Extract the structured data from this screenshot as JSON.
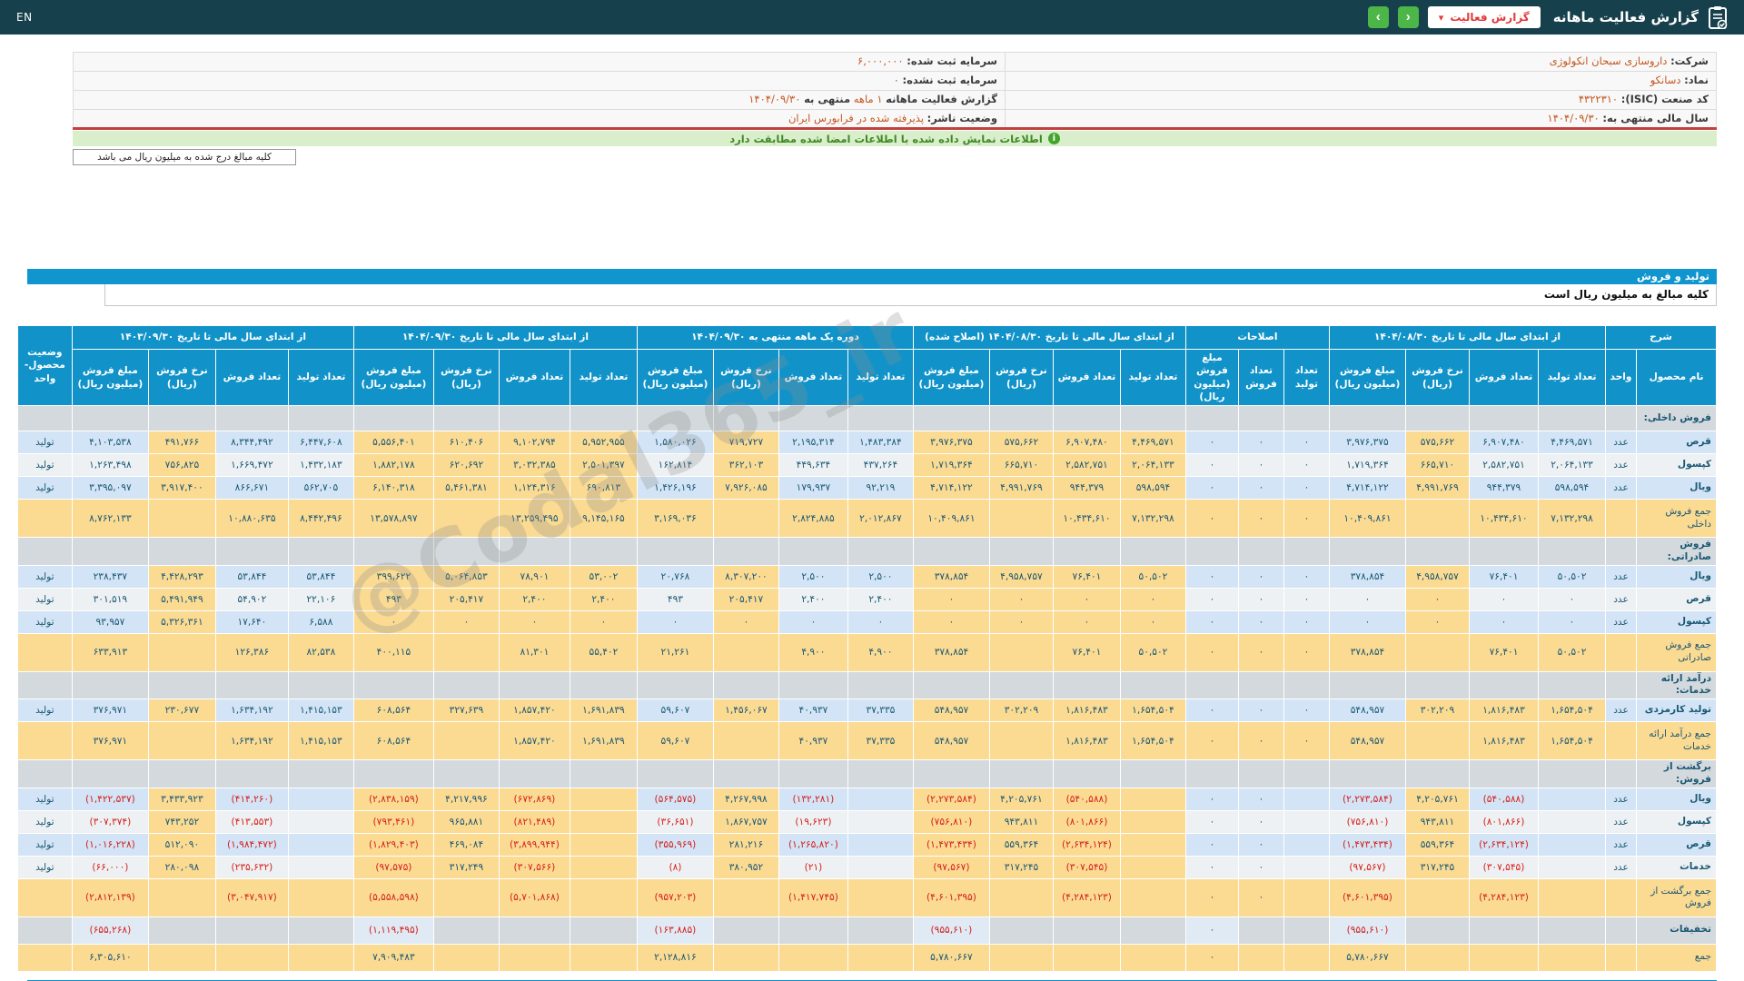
{
  "header": {
    "title": "گزارش فعالیت ماهانه",
    "dropdown_label": "گزارش فعالیت",
    "caret": "▾",
    "prev_glyph": "‹",
    "next_glyph": "›",
    "lang": "EN",
    "icon": "clipboard-icon"
  },
  "colors": {
    "topbar": "#17404d",
    "accent_blue": "#1095ce",
    "header_blue": "#1193c9",
    "cell_yellow": "#fbda92",
    "cell_blue": "#d2e4f5",
    "green_button": "#4cb648",
    "negative_red": "#d6201d",
    "value_orange": "#c3561f",
    "notice_green": "#d9eeca"
  },
  "info": {
    "rows": [
      {
        "r": {
          "label": "شرکت:",
          "value": "داروسازی سبحان انکولوژی"
        },
        "l": {
          "label": "سرمایه ثبت شده:",
          "value": "۶,۰۰۰,۰۰۰",
          "num": true
        }
      },
      {
        "r": {
          "label": "نماد:",
          "value": "دسانکو"
        },
        "l": {
          "label": "سرمایه ثبت نشده:",
          "value": "۰",
          "num": true
        }
      },
      {
        "r": {
          "label": "کد صنعت (ISIC):",
          "value": "۴۳۲۲۳۱۰",
          "num": true
        },
        "l": {
          "label": "گزارش فعالیت ماهانه",
          "value": "۱ ماهه",
          "mid": "منتهی به",
          "date": "۱۴۰۴/۰۹/۳۰"
        }
      },
      {
        "r": {
          "label": "سال مالی منتهی به:",
          "value": "۱۴۰۴/۰۹/۳۰",
          "num": true
        },
        "l": {
          "label": "وضعیت ناشر:",
          "value": "پذیرفته شده در فرابورس ایران"
        }
      }
    ]
  },
  "notice": {
    "text": "اطلاعات نمایش داده شده با اطلاعات امضا شده مطابقت دارد"
  },
  "unit_note": {
    "text": "کلیه مبالغ درج شده به میلیون ریال می باشد"
  },
  "section": {
    "title": "تولید و فروش",
    "subtitle": "کلیه مبالغ به میلیون ریال است"
  },
  "watermark": {
    "text": "@Codal365_ir"
  },
  "table": {
    "groups": [
      {
        "label": "شرح",
        "subs": [
          "نام محصول",
          "واحد"
        ]
      },
      {
        "label": "از ابتدای سال مالی تا تاریخ ۱۴۰۴/۰۸/۳۰",
        "subs": [
          "تعداد تولید",
          "تعداد فروش",
          "نرخ فروش (ریال)",
          "مبلغ فروش (میلیون ریال)"
        ]
      },
      {
        "label": "اصلاحات",
        "subs": [
          "تعداد تولید",
          "تعداد فروش",
          "مبلغ فروش (میلیون ریال)"
        ]
      },
      {
        "label": "از ابتدای سال مالی تا تاریخ ۱۴۰۴/۰۸/۳۰ (اصلاح شده)",
        "subs": [
          "تعداد تولید",
          "تعداد فروش",
          "نرخ فروش (ریال)",
          "مبلغ فروش (میلیون ریال)"
        ]
      },
      {
        "label": "دوره یک ماهه منتهی به ۱۴۰۴/۰۹/۳۰",
        "subs": [
          "تعداد تولید",
          "تعداد فروش",
          "نرخ فروش (ریال)",
          "مبلغ فروش (میلیون ریال)"
        ]
      },
      {
        "label": "از ابتدای سال مالی تا تاریخ ۱۴۰۴/۰۹/۳۰",
        "subs": [
          "تعداد تولید",
          "تعداد فروش",
          "نرخ فروش (ریال)",
          "مبلغ فروش (میلیون ریال)"
        ]
      },
      {
        "label": "از ابتدای سال مالی تا تاریخ ۱۴۰۳/۰۹/۳۰",
        "subs": [
          "تعداد تولید",
          "تعداد فروش",
          "نرخ فروش (ریال)",
          "مبلغ فروش (میلیون ریال)"
        ]
      },
      {
        "label": "وضعیت محصول-واحد",
        "subs": []
      }
    ],
    "rows": [
      {
        "t": "sec",
        "l": "فروش داخلی:"
      },
      {
        "t": "data",
        "l": "قرص",
        "u": "عدد",
        "s": "تولید",
        "c": [
          "۴,۴۶۹,۵۷۱",
          "۶,۹۰۷,۴۸۰",
          "۵۷۵,۶۶۲",
          "۳,۹۷۶,۳۷۵",
          "۰",
          "۰",
          "۰",
          "۴,۴۶۹,۵۷۱",
          "۶,۹۰۷,۴۸۰",
          "۵۷۵,۶۶۲",
          "۳,۹۷۶,۳۷۵",
          "۱,۴۸۳,۳۸۴",
          "۲,۱۹۵,۳۱۴",
          "۷۱۹,۷۲۷",
          "۱,۵۸۰,۰۲۶",
          "۵,۹۵۲,۹۵۵",
          "۹,۱۰۲,۷۹۴",
          "۶۱۰,۴۰۶",
          "۵,۵۵۶,۴۰۱",
          "۶,۴۴۷,۶۰۸",
          "۸,۳۴۴,۴۹۲",
          "۴۹۱,۷۶۶",
          "۴,۱۰۳,۵۳۸"
        ]
      },
      {
        "t": "data",
        "a": 1,
        "l": "کپسول",
        "u": "عدد",
        "s": "تولید",
        "c": [
          "۲,۰۶۴,۱۳۳",
          "۲,۵۸۲,۷۵۱",
          "۶۶۵,۷۱۰",
          "۱,۷۱۹,۳۶۴",
          "۰",
          "۰",
          "۰",
          "۲,۰۶۴,۱۳۳",
          "۲,۵۸۲,۷۵۱",
          "۶۶۵,۷۱۰",
          "۱,۷۱۹,۳۶۴",
          "۴۳۷,۲۶۴",
          "۴۴۹,۶۳۴",
          "۳۶۲,۱۰۳",
          "۱۶۲,۸۱۴",
          "۲,۵۰۱,۳۹۷",
          "۳,۰۳۲,۳۸۵",
          "۶۲۰,۶۹۲",
          "۱,۸۸۲,۱۷۸",
          "۱,۴۳۲,۱۸۳",
          "۱,۶۶۹,۴۷۲",
          "۷۵۶,۸۲۵",
          "۱,۲۶۳,۴۹۸"
        ]
      },
      {
        "t": "data",
        "l": "ویال",
        "u": "عدد",
        "s": "تولید",
        "c": [
          "۵۹۸,۵۹۴",
          "۹۴۴,۳۷۹",
          "۴,۹۹۱,۷۶۹",
          "۴,۷۱۴,۱۲۲",
          "۰",
          "۰",
          "۰",
          "۵۹۸,۵۹۴",
          "۹۴۴,۳۷۹",
          "۴,۹۹۱,۷۶۹",
          "۴,۷۱۴,۱۲۲",
          "۹۲,۲۱۹",
          "۱۷۹,۹۳۷",
          "۷,۹۲۶,۰۸۵",
          "۱,۴۲۶,۱۹۶",
          "۶۹۰,۸۱۳",
          "۱,۱۲۴,۳۱۶",
          "۵,۴۶۱,۳۸۱",
          "۶,۱۴۰,۳۱۸",
          "۵۶۲,۷۰۵",
          "۸۶۶,۶۷۱",
          "۳,۹۱۷,۴۰۰",
          "۳,۳۹۵,۰۹۷"
        ]
      },
      {
        "t": "sum",
        "l": "جمع فروش داخلی",
        "c": [
          "۷,۱۳۲,۲۹۸",
          "۱۰,۴۳۴,۶۱۰",
          "",
          "۱۰,۴۰۹,۸۶۱",
          "۰",
          "۰",
          "۰",
          "۷,۱۳۲,۲۹۸",
          "۱۰,۴۳۴,۶۱۰",
          "",
          "۱۰,۴۰۹,۸۶۱",
          "۲,۰۱۲,۸۶۷",
          "۲,۸۲۴,۸۸۵",
          "",
          "۳,۱۶۹,۰۳۶",
          "۹,۱۴۵,۱۶۵",
          "۱۳,۲۵۹,۴۹۵",
          "",
          "۱۳,۵۷۸,۸۹۷",
          "۸,۴۴۲,۴۹۶",
          "۱۰,۸۸۰,۶۳۵",
          "",
          "۸,۷۶۲,۱۳۳"
        ]
      },
      {
        "t": "sec",
        "l": "فروش صادراتی:"
      },
      {
        "t": "data",
        "l": "ویال",
        "u": "عدد",
        "s": "تولید",
        "c": [
          "۵۰,۵۰۲",
          "۷۶,۴۰۱",
          "۴,۹۵۸,۷۵۷",
          "۳۷۸,۸۵۴",
          "۰",
          "۰",
          "۰",
          "۵۰,۵۰۲",
          "۷۶,۴۰۱",
          "۴,۹۵۸,۷۵۷",
          "۳۷۸,۸۵۴",
          "۲,۵۰۰",
          "۲,۵۰۰",
          "۸,۳۰۷,۲۰۰",
          "۲۰,۷۶۸",
          "۵۳,۰۰۲",
          "۷۸,۹۰۱",
          "۵,۰۶۴,۸۵۳",
          "۳۹۹,۶۲۲",
          "۵۳,۸۴۴",
          "۵۳,۸۴۴",
          "۴,۴۲۸,۲۹۳",
          "۲۳۸,۴۳۷"
        ]
      },
      {
        "t": "data",
        "a": 1,
        "l": "قرص",
        "u": "عدد",
        "s": "تولید",
        "c": [
          "۰",
          "۰",
          "۰",
          "۰",
          "۰",
          "۰",
          "۰",
          "۰",
          "۰",
          "۰",
          "۰",
          "۲,۴۰۰",
          "۲,۴۰۰",
          "۲۰۵,۴۱۷",
          "۴۹۳",
          "۲,۴۰۰",
          "۲,۴۰۰",
          "۲۰۵,۴۱۷",
          "۴۹۳",
          "۲۲,۱۰۶",
          "۵۴,۹۰۲",
          "۵,۴۹۱,۹۴۹",
          "۳۰۱,۵۱۹"
        ]
      },
      {
        "t": "data",
        "l": "کپسول",
        "u": "عدد",
        "s": "تولید",
        "c": [
          "۰",
          "۰",
          "۰",
          "۰",
          "۰",
          "۰",
          "۰",
          "۰",
          "۰",
          "۰",
          "۰",
          "۰",
          "۰",
          "۰",
          "۰",
          "۰",
          "۰",
          "۰",
          "۰",
          "۶,۵۸۸",
          "۱۷,۶۴۰",
          "۵,۳۲۶,۳۶۱",
          "۹۳,۹۵۷"
        ]
      },
      {
        "t": "sum",
        "l": "جمع فروش صادراتی",
        "c": [
          "۵۰,۵۰۲",
          "۷۶,۴۰۱",
          "",
          "۳۷۸,۸۵۴",
          "۰",
          "۰",
          "۰",
          "۵۰,۵۰۲",
          "۷۶,۴۰۱",
          "",
          "۳۷۸,۸۵۴",
          "۴,۹۰۰",
          "۴,۹۰۰",
          "",
          "۲۱,۲۶۱",
          "۵۵,۴۰۲",
          "۸۱,۳۰۱",
          "",
          "۴۰۰,۱۱۵",
          "۸۲,۵۳۸",
          "۱۲۶,۳۸۶",
          "",
          "۶۳۳,۹۱۳"
        ]
      },
      {
        "t": "sec",
        "l": "درآمد ارائه خدمات:"
      },
      {
        "t": "data",
        "l": "تولید کارمزدی",
        "u": "عدد",
        "s": "تولید",
        "x": [
          0,
          1
        ],
        "c": [
          "۱,۶۵۴,۵۰۴",
          "۱,۸۱۶,۴۸۳",
          "۳۰۲,۲۰۹",
          "۵۴۸,۹۵۷",
          "۰",
          "۰",
          "۰",
          "۱,۶۵۴,۵۰۴",
          "۱,۸۱۶,۴۸۳",
          "۳۰۲,۲۰۹",
          "۵۴۸,۹۵۷",
          "۳۷,۳۳۵",
          "۴۰,۹۳۷",
          "۱,۴۵۶,۰۶۷",
          "۵۹,۶۰۷",
          "۱,۶۹۱,۸۳۹",
          "۱,۸۵۷,۴۲۰",
          "۳۲۷,۶۳۹",
          "۶۰۸,۵۶۴",
          "۱,۴۱۵,۱۵۳",
          "۱,۶۳۴,۱۹۲",
          "۲۳۰,۶۷۷",
          "۳۷۶,۹۷۱"
        ]
      },
      {
        "t": "sum",
        "l": "جمع درآمد ارائه خدمات",
        "c": [
          "۱,۶۵۴,۵۰۴",
          "۱,۸۱۶,۴۸۳",
          "",
          "۵۴۸,۹۵۷",
          "۰",
          "۰",
          "۰",
          "۱,۶۵۴,۵۰۴",
          "۱,۸۱۶,۴۸۳",
          "",
          "۵۴۸,۹۵۷",
          "۳۷,۳۳۵",
          "۴۰,۹۳۷",
          "",
          "۵۹,۶۰۷",
          "۱,۶۹۱,۸۳۹",
          "۱,۸۵۷,۴۲۰",
          "",
          "۶۰۸,۵۶۴",
          "۱,۴۱۵,۱۵۳",
          "۱,۶۳۴,۱۹۲",
          "",
          "۳۷۶,۹۷۱"
        ]
      },
      {
        "t": "sec",
        "l": "برگشت از فروش:"
      },
      {
        "t": "data",
        "l": "ویال",
        "u": "عدد",
        "s": "تولید",
        "c": [
          "",
          "(۵۴۰,۵۸۸)",
          "۴,۲۰۵,۷۶۱",
          "(۲,۲۷۳,۵۸۴)",
          "",
          "۰",
          "۰",
          "",
          "(۵۴۰,۵۸۸)",
          "۴,۲۰۵,۷۶۱",
          "(۲,۲۷۳,۵۸۴)",
          "",
          "(۱۳۲,۲۸۱)",
          "۴,۲۶۷,۹۹۸",
          "(۵۶۴,۵۷۵)",
          "",
          "(۶۷۲,۸۶۹)",
          "۴,۲۱۷,۹۹۶",
          "(۲,۸۳۸,۱۵۹)",
          "",
          "(۴۱۴,۲۶۰)",
          "۳,۴۳۳,۹۲۳",
          "(۱,۴۲۲,۵۳۷)"
        ]
      },
      {
        "t": "data",
        "a": 1,
        "l": "کپسول",
        "u": "عدد",
        "s": "تولید",
        "c": [
          "",
          "(۸۰۱,۸۶۶)",
          "۹۴۳,۸۱۱",
          "(۷۵۶,۸۱۰)",
          "",
          "۰",
          "۰",
          "",
          "(۸۰۱,۸۶۶)",
          "۹۴۳,۸۱۱",
          "(۷۵۶,۸۱۰)",
          "",
          "(۱۹,۶۲۳)",
          "۱,۸۶۷,۷۵۷",
          "(۳۶,۶۵۱)",
          "",
          "(۸۲۱,۴۸۹)",
          "۹۶۵,۸۸۱",
          "(۷۹۳,۴۶۱)",
          "",
          "(۴۱۳,۵۵۳)",
          "۷۴۳,۲۵۲",
          "(۳۰۷,۳۷۴)"
        ]
      },
      {
        "t": "data",
        "l": "قرص",
        "u": "عدد",
        "s": "تولید",
        "c": [
          "",
          "(۲,۶۳۴,۱۲۴)",
          "۵۵۹,۳۶۴",
          "(۱,۴۷۳,۴۳۴)",
          "",
          "۰",
          "۰",
          "",
          "(۲,۶۳۴,۱۲۴)",
          "۵۵۹,۳۶۴",
          "(۱,۴۷۳,۴۳۴)",
          "",
          "(۱,۲۶۵,۸۲۰)",
          "۲۸۱,۲۱۶",
          "(۳۵۵,۹۶۹)",
          "",
          "(۳,۸۹۹,۹۴۴)",
          "۴۶۹,۰۸۴",
          "(۱,۸۲۹,۴۰۳)",
          "",
          "(۱,۹۸۴,۴۷۲)",
          "۵۱۲,۰۹۰",
          "(۱,۰۱۶,۲۲۸)"
        ]
      },
      {
        "t": "data",
        "a": 1,
        "l": "خدمات",
        "u": "عدد",
        "s": "تولید",
        "c": [
          "",
          "(۳۰۷,۵۴۵)",
          "۳۱۷,۲۴۵",
          "(۹۷,۵۶۷)",
          "",
          "۰",
          "۰",
          "",
          "(۳۰۷,۵۴۵)",
          "۳۱۷,۲۴۵",
          "(۹۷,۵۶۷)",
          "",
          "(۲۱)",
          "۳۸۰,۹۵۲",
          "(۸)",
          "",
          "(۳۰۷,۵۶۶)",
          "۳۱۷,۲۴۹",
          "(۹۷,۵۷۵)",
          "",
          "(۲۳۵,۶۳۲)",
          "۲۸۰,۰۹۸",
          "(۶۶,۰۰۰)"
        ]
      },
      {
        "t": "sum",
        "l": "جمع برگشت از فروش",
        "c": [
          "",
          "(۴,۲۸۴,۱۲۳)",
          "",
          "(۴,۶۰۱,۳۹۵)",
          "",
          "۰",
          "۰",
          "",
          "(۴,۲۸۴,۱۲۳)",
          "",
          "(۴,۶۰۱,۳۹۵)",
          "",
          "(۱,۴۱۷,۷۴۵)",
          "",
          "(۹۵۷,۲۰۳)",
          "",
          "(۵,۷۰۱,۸۶۸)",
          "",
          "(۵,۵۵۸,۵۹۸)",
          "",
          "(۳,۰۴۷,۹۱۷)",
          "",
          "(۲,۸۱۲,۱۳۹)"
        ]
      },
      {
        "t": "disc",
        "l": "تخفیفات",
        "c": [
          "",
          "",
          "",
          "(۹۵۵,۶۱۰)",
          "",
          "",
          "۰",
          "",
          "",
          "",
          "(۹۵۵,۶۱۰)",
          "",
          "",
          "",
          "(۱۶۳,۸۸۵)",
          "",
          "",
          "",
          "(۱,۱۱۹,۴۹۵)",
          "",
          "",
          "",
          "(۶۵۵,۲۶۸)"
        ]
      },
      {
        "t": "total",
        "l": "جمع",
        "c": [
          "",
          "",
          "",
          "۵,۷۸۰,۶۶۷",
          "",
          "",
          "۰",
          "",
          "",
          "",
          "۵,۷۸۰,۶۶۷",
          "",
          "",
          "",
          "۲,۱۲۸,۸۱۶",
          "",
          "",
          "",
          "۷,۹۰۹,۴۸۳",
          "",
          "",
          "",
          "۶,۳۰۵,۶۱۰"
        ]
      }
    ]
  }
}
